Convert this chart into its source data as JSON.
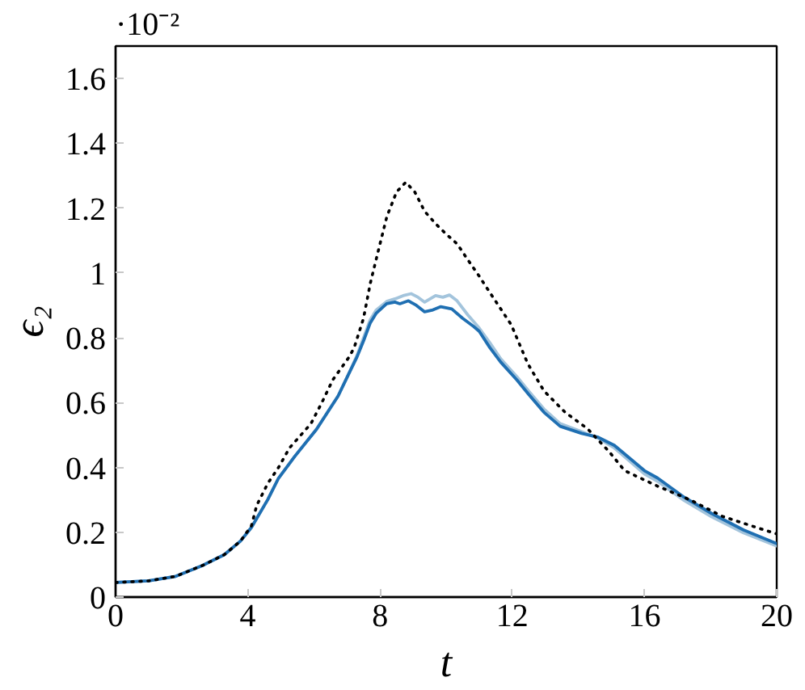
{
  "chart_data": {
    "type": "line",
    "xlabel": "t",
    "ylabel": "ϵ₂",
    "annotations": [
      "·10⁻²"
    ],
    "xlim": [
      0,
      20
    ],
    "ylim": [
      0,
      1.7
    ],
    "xticks": [
      0,
      4,
      8,
      12,
      16,
      20
    ],
    "yticks": [
      0,
      0.2,
      0.4,
      0.6,
      0.8,
      1,
      1.2,
      1.4,
      1.6
    ],
    "grid": false,
    "series": [
      {
        "color": "#a3c4dc",
        "line_style": "solid",
        "x": [
          0,
          1,
          1.82,
          2.64,
          3.29,
          3.78,
          4.11,
          4.6,
          4.93,
          5.42,
          6.08,
          6.73,
          7.06,
          7.3,
          7.5,
          7.7,
          7.88,
          8.2,
          8.45,
          8.7,
          8.94,
          9.15,
          9.35,
          9.68,
          9.9,
          10.1,
          10.33,
          10.66,
          11.0,
          11.32,
          11.65,
          12.14,
          12.5,
          12.96,
          13.45,
          14.1,
          14.6,
          15.09,
          16.0,
          16.4,
          17.2,
          18.03,
          19.0,
          20
        ],
        "values": [
          0.045,
          0.05,
          0.064,
          0.098,
          0.131,
          0.173,
          0.215,
          0.3,
          0.367,
          0.434,
          0.518,
          0.62,
          0.69,
          0.745,
          0.8,
          0.855,
          0.885,
          0.912,
          0.92,
          0.93,
          0.936,
          0.925,
          0.91,
          0.93,
          0.925,
          0.932,
          0.914,
          0.87,
          0.83,
          0.785,
          0.735,
          0.68,
          0.635,
          0.58,
          0.535,
          0.51,
          0.49,
          0.46,
          0.38,
          0.357,
          0.298,
          0.248,
          0.198,
          0.158
        ]
      },
      {
        "color": "#1f6fb2",
        "line_style": "solid",
        "x": [
          0,
          1,
          1.82,
          2.64,
          3.29,
          3.78,
          4.11,
          4.6,
          4.93,
          5.42,
          6.08,
          6.73,
          7.06,
          7.3,
          7.5,
          7.7,
          7.88,
          8.2,
          8.45,
          8.6,
          8.86,
          9.1,
          9.35,
          9.6,
          9.84,
          10.17,
          10.5,
          10.83,
          11.0,
          11.32,
          11.65,
          12.14,
          12.5,
          12.96,
          13.45,
          14.1,
          14.6,
          15.09,
          16.0,
          16.4,
          17.2,
          18.03,
          19.0,
          20
        ],
        "values": [
          0.045,
          0.05,
          0.064,
          0.098,
          0.131,
          0.173,
          0.215,
          0.3,
          0.367,
          0.434,
          0.518,
          0.62,
          0.69,
          0.74,
          0.79,
          0.845,
          0.875,
          0.905,
          0.91,
          0.905,
          0.914,
          0.9,
          0.88,
          0.886,
          0.896,
          0.889,
          0.86,
          0.835,
          0.82,
          0.77,
          0.725,
          0.67,
          0.625,
          0.57,
          0.527,
          0.505,
          0.493,
          0.468,
          0.39,
          0.367,
          0.308,
          0.258,
          0.207,
          0.165
        ]
      },
      {
        "color": "#000000",
        "line_style": "dotted",
        "x": [
          0,
          1,
          1.82,
          2.64,
          3.29,
          3.78,
          4.11,
          4.27,
          4.6,
          4.93,
          5.26,
          5.91,
          6.24,
          6.57,
          7.06,
          7.22,
          7.5,
          7.71,
          8.0,
          8.21,
          8.5,
          8.78,
          9.05,
          9.35,
          9.7,
          10.0,
          10.33,
          10.66,
          11.0,
          11.32,
          11.97,
          12.47,
          12.96,
          13.6,
          14.27,
          14.92,
          15.4,
          16.4,
          17.38,
          18.36,
          19.35,
          20
        ],
        "values": [
          0.045,
          0.05,
          0.064,
          0.098,
          0.131,
          0.173,
          0.22,
          0.283,
          0.35,
          0.4,
          0.46,
          0.535,
          0.6,
          0.67,
          0.74,
          0.77,
          0.86,
          0.97,
          1.09,
          1.175,
          1.25,
          1.28,
          1.25,
          1.19,
          1.15,
          1.12,
          1.09,
          1.04,
          0.99,
          0.94,
          0.84,
          0.72,
          0.636,
          0.57,
          0.52,
          0.45,
          0.39,
          0.342,
          0.3,
          0.249,
          0.216,
          0.195
        ]
      }
    ]
  }
}
